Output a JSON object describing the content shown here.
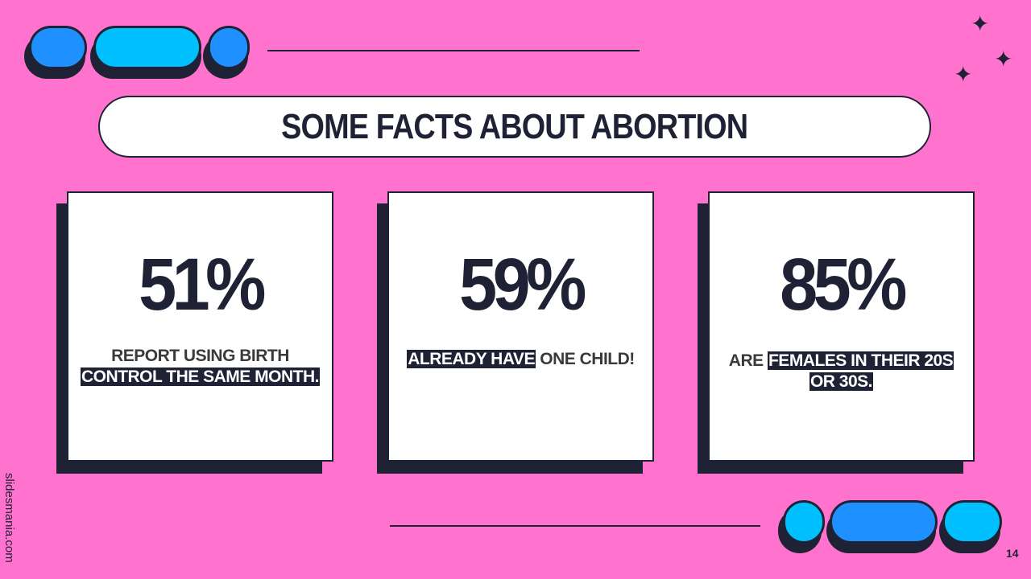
{
  "title": "SOME FACTS ABOUT ABORTION",
  "cards": [
    {
      "value": "51%",
      "desc_line1": "REPORT USING BIRTH",
      "desc_line2": "CONTROL THE SAME MONTH."
    },
    {
      "value": "59%",
      "desc_hl": "ALREADY HAVE",
      "desc_rest": " ONE CHILD!"
    },
    {
      "value": "85%",
      "desc_pre": "ARE ",
      "desc_hl1": "FEMALES IN THEIR 20S",
      "desc_hl2": "OR 30S."
    }
  ],
  "footer": {
    "brand": "slidesmania.com",
    "page_number": "14"
  },
  "colors": {
    "background": "#ff73cf",
    "dark": "#1f2235",
    "blue": "#1e90ff",
    "cyan": "#00bfff",
    "white": "#ffffff"
  },
  "icons": [
    "sparkle-icon",
    "sparkle-icon",
    "sparkle-icon"
  ]
}
